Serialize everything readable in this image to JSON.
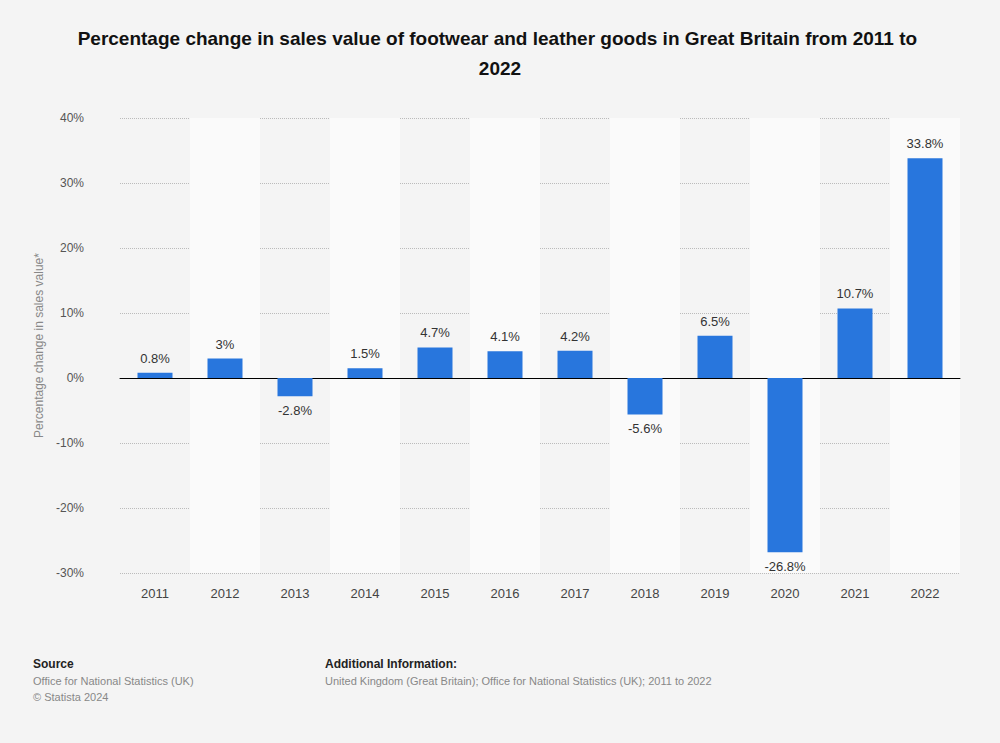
{
  "chart_data": {
    "type": "bar",
    "title": "Percentage change in sales value of footwear and leather goods in Great Britain from 2011 to 2022",
    "y_label": "Percentage change in sales value*",
    "categories": [
      "2011",
      "2012",
      "2013",
      "2014",
      "2015",
      "2016",
      "2017",
      "2018",
      "2019",
      "2020",
      "2021",
      "2022"
    ],
    "values": [
      0.8,
      3,
      -2.8,
      1.5,
      4.7,
      4.1,
      4.2,
      -5.6,
      6.5,
      -26.8,
      10.7,
      33.8
    ],
    "value_labels": [
      "0.8%",
      "3%",
      "-2.8%",
      "1.5%",
      "4.7%",
      "4.1%",
      "4.2%",
      "-5.6%",
      "6.5%",
      "-26.8%",
      "10.7%",
      "33.8%"
    ],
    "color": "#2876dd",
    "ylim": [
      -30,
      40
    ],
    "yticks": [
      {
        "value": -30,
        "label": "-30%"
      },
      {
        "value": -20,
        "label": "-20%"
      },
      {
        "value": -10,
        "label": "-10%"
      },
      {
        "value": 0,
        "label": "0%"
      },
      {
        "value": 10,
        "label": "10%"
      },
      {
        "value": 20,
        "label": "20%"
      },
      {
        "value": 30,
        "label": "30%"
      },
      {
        "value": 40,
        "label": "40%"
      }
    ],
    "grid": true,
    "data_labels": true
  },
  "footer": {
    "source_label": "Source",
    "source": "Office for National Statistics (UK)",
    "copyright": "© Statista 2024",
    "additional_info_label": "Additional Information:",
    "additional_info": "United Kingdom (Great Britain); Office for National Statistics (UK); 2011 to 2022"
  }
}
